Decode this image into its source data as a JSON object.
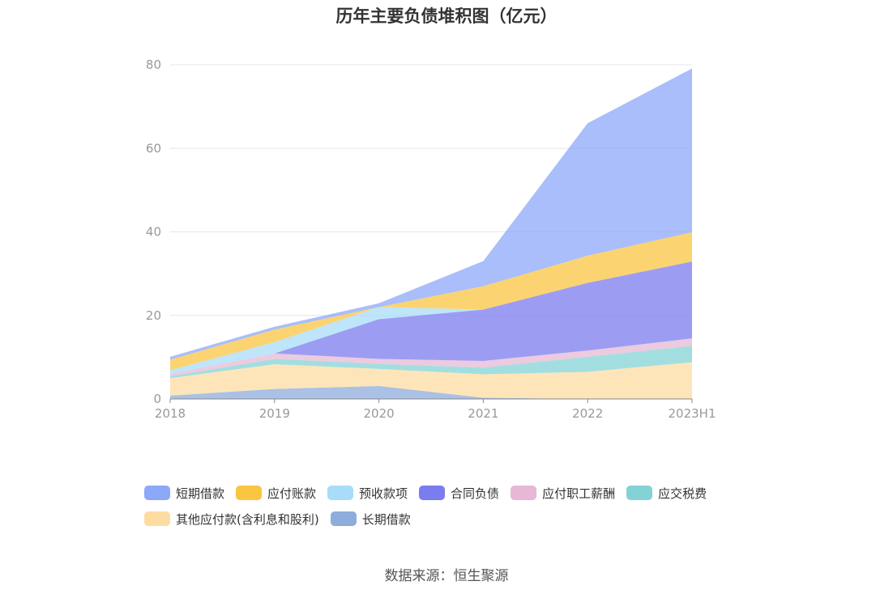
{
  "chart_data": {
    "type": "area",
    "stacked": true,
    "title": "历年主要负债堆积图（亿元）",
    "categories": [
      "2018",
      "2019",
      "2020",
      "2021",
      "2022",
      "2023H1"
    ],
    "ylim": [
      0,
      80
    ],
    "yticks": [
      0,
      20,
      40,
      60,
      80
    ],
    "grid": true,
    "legend_position": "bottom",
    "series": [
      {
        "name": "长期借款",
        "color": "#8eacdc",
        "values": [
          0.8,
          2.4,
          3.1,
          0.3,
          0.0,
          0.0
        ]
      },
      {
        "name": "其他应付款(含利息和股利)",
        "color": "#fddca1",
        "values": [
          4.2,
          5.9,
          4.1,
          5.6,
          6.5,
          8.8
        ]
      },
      {
        "name": "应交税费",
        "color": "#83d3d6",
        "values": [
          0.4,
          1.3,
          1.2,
          1.6,
          3.6,
          3.9
        ]
      },
      {
        "name": "应付职工薪酬",
        "color": "#e6b8d6",
        "values": [
          0.6,
          1.3,
          1.2,
          1.6,
          1.5,
          1.8
        ]
      },
      {
        "name": "合同负债",
        "color": "#7b7cee",
        "values": [
          0.0,
          0.0,
          9.5,
          12.3,
          16.2,
          18.4
        ]
      },
      {
        "name": "预收款项",
        "color": "#a8dcf8",
        "values": [
          0.9,
          2.7,
          2.9,
          0.0,
          0.0,
          0.0
        ]
      },
      {
        "name": "应付账款",
        "color": "#fac542",
        "values": [
          2.5,
          3.0,
          0.0,
          5.6,
          6.5,
          7.0
        ]
      },
      {
        "name": "短期借款",
        "color": "#8ca8f8",
        "values": [
          0.7,
          0.7,
          0.9,
          6.0,
          31.7,
          39.2
        ]
      }
    ]
  },
  "legend": [
    {
      "name": "短期借款",
      "color": "#8ca8f8"
    },
    {
      "name": "应付账款",
      "color": "#fac542"
    },
    {
      "name": "预收款项",
      "color": "#a8dcf8"
    },
    {
      "name": "合同负债",
      "color": "#7b7cee"
    },
    {
      "name": "应付职工薪酬",
      "color": "#e6b8d6"
    },
    {
      "name": "应交税费",
      "color": "#83d3d6"
    },
    {
      "name": "其他应付款(含利息和股利)",
      "color": "#fddca1"
    },
    {
      "name": "长期借款",
      "color": "#8eacdc"
    }
  ],
  "source": "数据来源：恒生聚源"
}
